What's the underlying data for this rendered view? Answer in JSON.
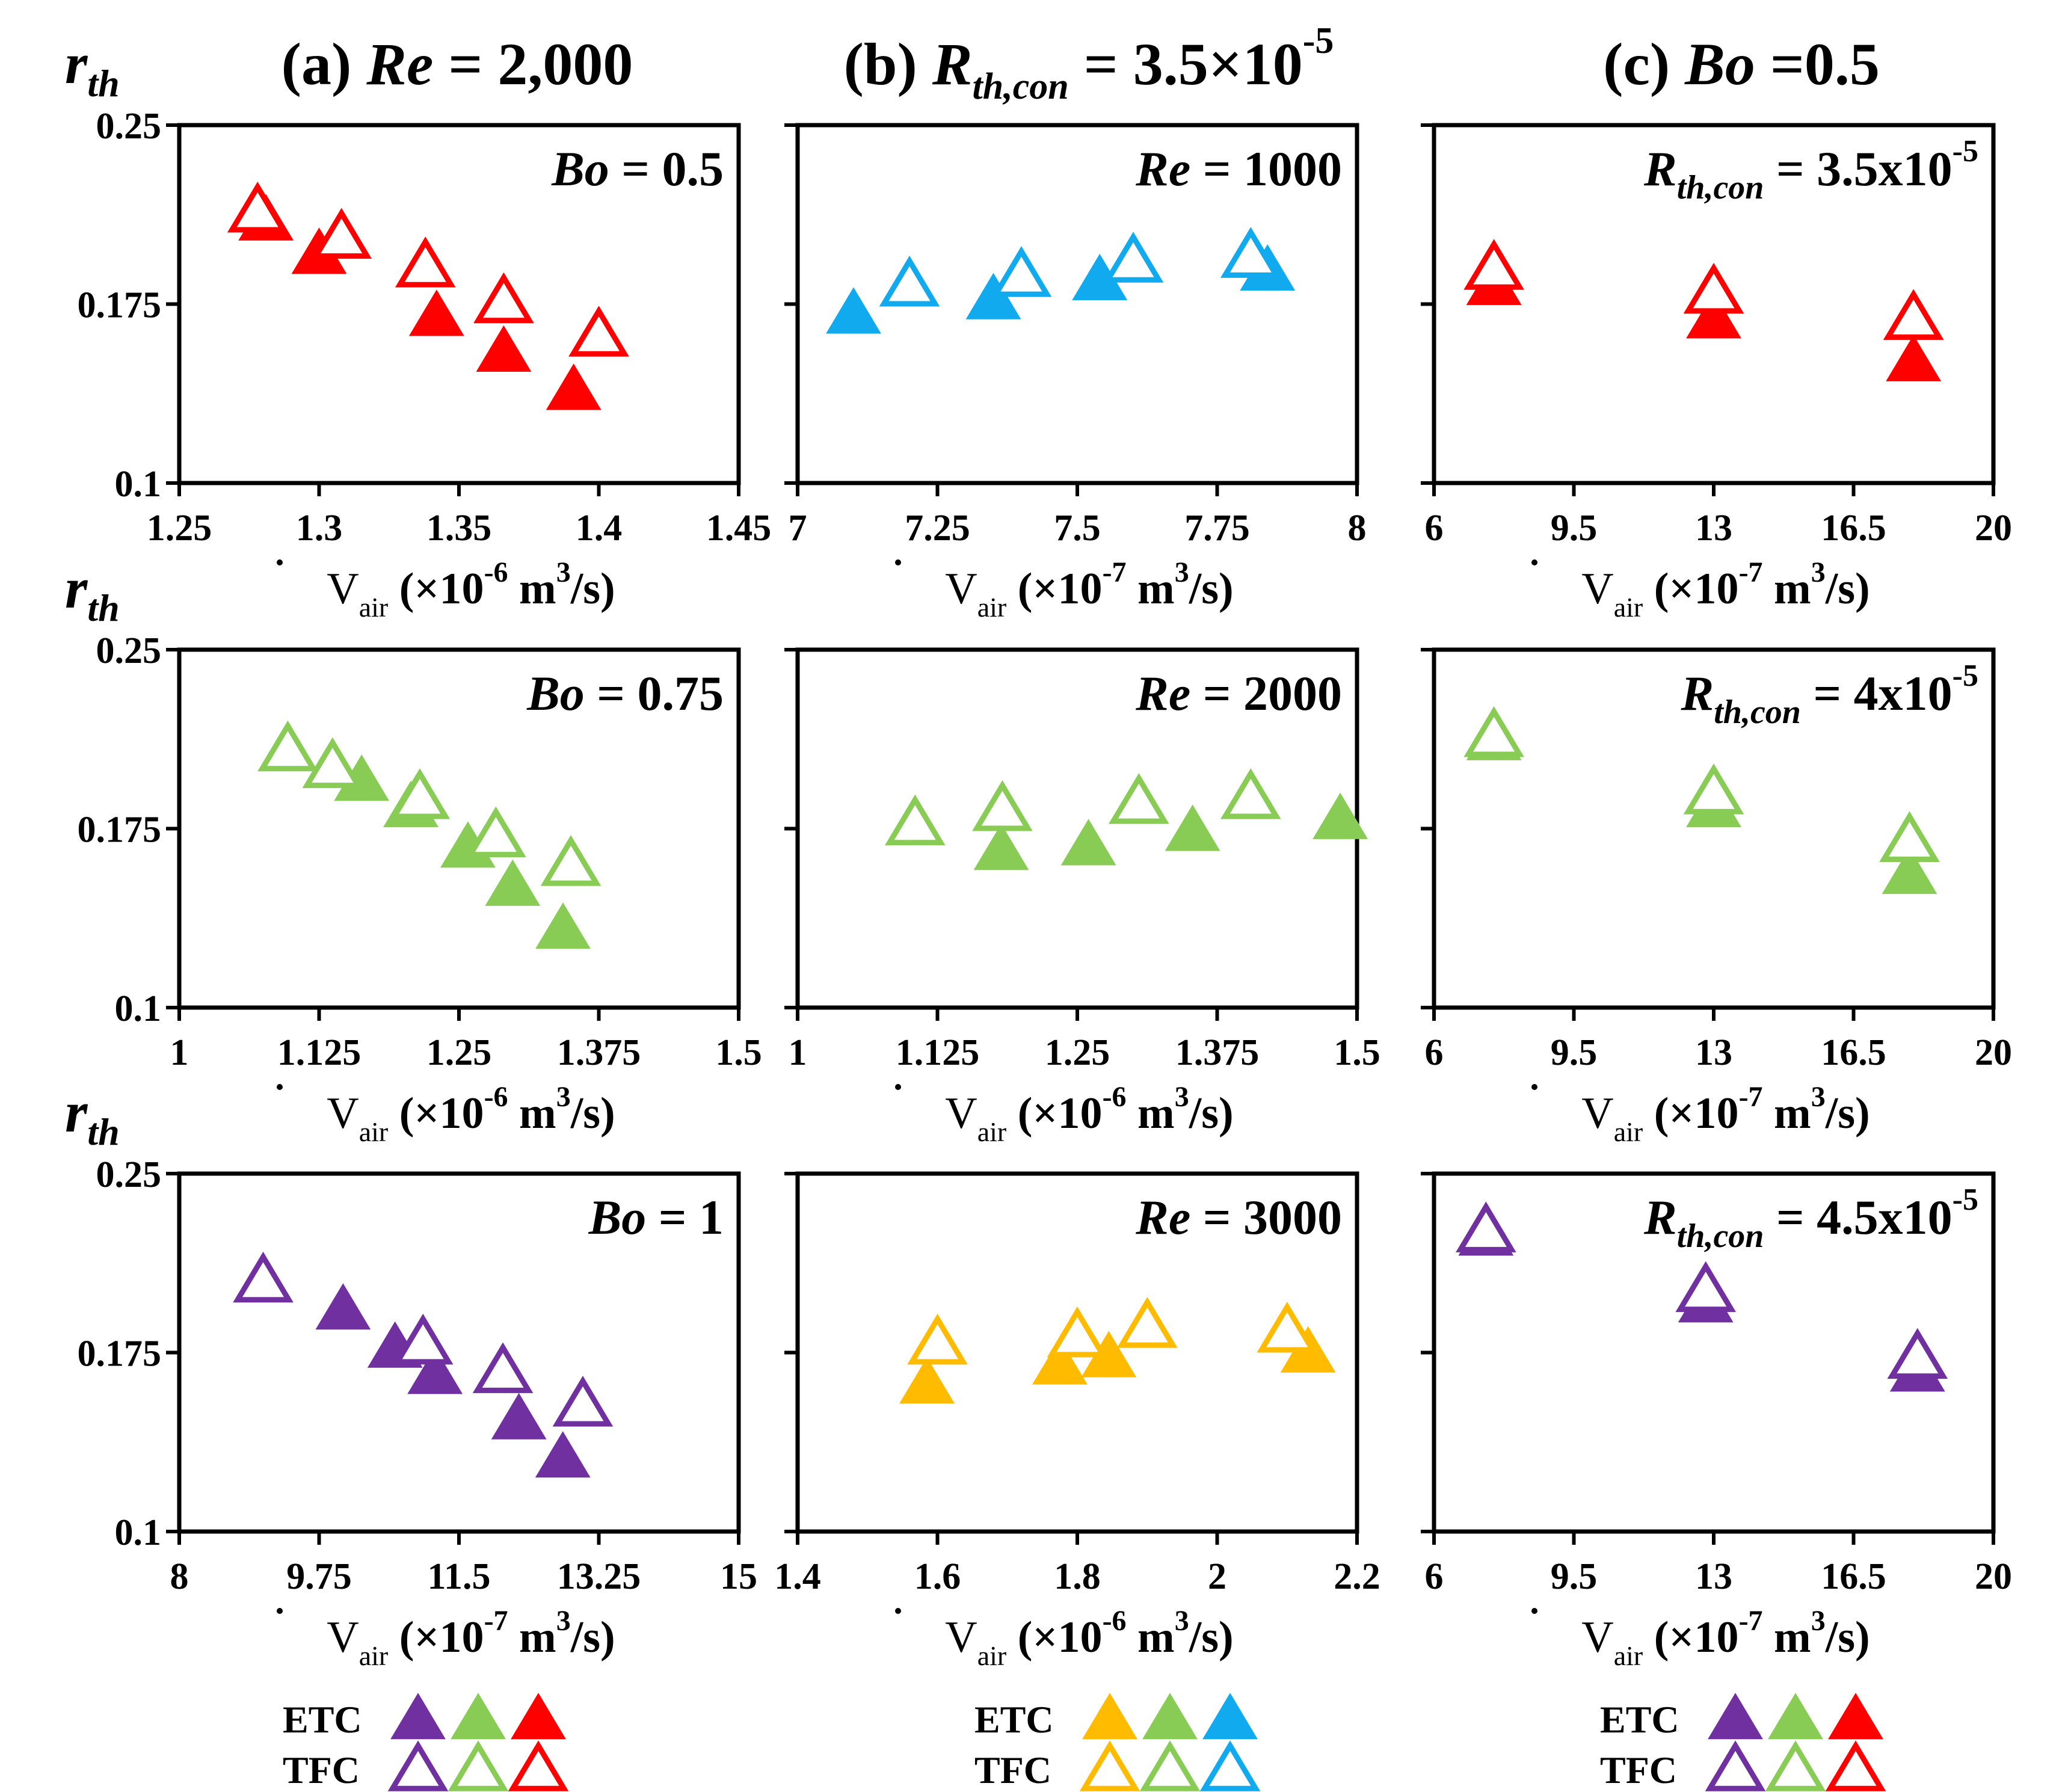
{
  "colors": {
    "red": "#ff0000",
    "green": "#88cc55",
    "blue": "#11aaee",
    "purple": "#7030a0",
    "yellow": "#ffbb00"
  },
  "column_titles": [
    {
      "prefix": "(a) ",
      "math": "Re",
      "sub": "",
      "rest": " = 2,000",
      "sup": ""
    },
    {
      "prefix": "(b) ",
      "math": "R",
      "sub": "th,con",
      "rest": " = 3.5×10",
      "sup": "-5"
    },
    {
      "prefix": "(c) ",
      "math": "Bo",
      "sub": "",
      "rest": " =0.5",
      "sup": ""
    }
  ],
  "ylabel": {
    "main": "r",
    "sub": "th"
  },
  "legends": [
    {
      "etc": "ETC",
      "tfc": "TFC",
      "colors": [
        "purple",
        "green",
        "red"
      ]
    },
    {
      "etc": "ETC",
      "tfc": "TFC",
      "colors": [
        "yellow",
        "green",
        "blue"
      ]
    },
    {
      "etc": "ETC",
      "tfc": "TFC",
      "colors": [
        "purple",
        "green",
        "red"
      ]
    }
  ],
  "chart_data": [
    {
      "type": "scatter",
      "row": 0,
      "col": 0,
      "color": "red",
      "annotation": {
        "math": "Bo",
        "sub": "",
        "rest": " = 0.5",
        "sup": ""
      },
      "ylabel": "r_th",
      "xlabel": {
        "v": "V",
        "sub": "air",
        "pre": " (×10",
        "exp": "-6",
        "post": " m",
        "exp2": "3",
        "tail": "/s)"
      },
      "xlim": [
        1.25,
        1.45
      ],
      "xticks": [
        "1.25",
        "1.3",
        "1.35",
        "1.4",
        "1.45"
      ],
      "ylim": [
        0.1,
        0.25
      ],
      "yticks": [
        "0.1",
        "0.175",
        "0.25"
      ],
      "series": [
        {
          "name": "ETC",
          "filled": true,
          "x": [
            1.281,
            1.3,
            1.342,
            1.366,
            1.391
          ],
          "y": [
            0.21,
            0.196,
            0.17,
            0.155,
            0.139
          ]
        },
        {
          "name": "TFC",
          "filled": false,
          "x": [
            1.278,
            1.308,
            1.338,
            1.366,
            1.4
          ],
          "y": [
            0.214,
            0.203,
            0.191,
            0.176,
            0.162
          ]
        }
      ]
    },
    {
      "type": "scatter",
      "row": 0,
      "col": 1,
      "color": "blue",
      "annotation": {
        "math": "Re",
        "sub": "",
        "rest": " = 1000",
        "sup": ""
      },
      "xlabel": {
        "v": "V",
        "sub": "air",
        "pre": " (×10",
        "exp": "-7",
        "post": " m",
        "exp2": "3",
        "tail": "/s)"
      },
      "xlim": [
        7,
        8
      ],
      "xticks": [
        "7",
        "7.25",
        "7.5",
        "7.75",
        "8"
      ],
      "ylim": [
        0.1,
        0.25
      ],
      "yticks": [
        "",
        "",
        ""
      ],
      "series": [
        {
          "name": "ETC",
          "filled": true,
          "x": [
            7.1,
            7.35,
            7.54,
            7.84
          ],
          "y": [
            0.171,
            0.177,
            0.185,
            0.189
          ]
        },
        {
          "name": "TFC",
          "filled": false,
          "x": [
            7.2,
            7.4,
            7.6,
            7.81
          ],
          "y": [
            0.183,
            0.187,
            0.193,
            0.195
          ]
        }
      ]
    },
    {
      "type": "scatter",
      "row": 0,
      "col": 2,
      "color": "red",
      "annotation": {
        "math": "R",
        "sub": "th,con",
        "rest": " = 3.5x10",
        "sup": "-5"
      },
      "xlabel": {
        "v": "V",
        "sub": "air",
        "pre": " (×10",
        "exp": "-7",
        "post": " m",
        "exp2": "3",
        "tail": "/s)"
      },
      "xlim": [
        6,
        20
      ],
      "xticks": [
        "6",
        "9.5",
        "13",
        "16.5",
        "20"
      ],
      "ylim": [
        0.1,
        0.25
      ],
      "yticks": [
        "",
        "",
        ""
      ],
      "series": [
        {
          "name": "ETC",
          "filled": true,
          "x": [
            7.5,
            13.0,
            18.0
          ],
          "y": [
            0.183,
            0.169,
            0.151
          ]
        },
        {
          "name": "TFC",
          "filled": false,
          "x": [
            7.5,
            13.0,
            18.0
          ],
          "y": [
            0.19,
            0.18,
            0.169
          ]
        }
      ]
    },
    {
      "type": "scatter",
      "row": 1,
      "col": 0,
      "color": "green",
      "annotation": {
        "math": "Bo",
        "sub": "",
        "rest": " = 0.75",
        "sup": ""
      },
      "ylabel": "r_th",
      "xlabel": {
        "v": "V",
        "sub": "air",
        "pre": " (×10",
        "exp": "-6",
        "post": " m",
        "exp2": "3",
        "tail": "/s)"
      },
      "xlim": [
        1,
        1.5
      ],
      "xticks": [
        "1",
        "1.125",
        "1.25",
        "1.375",
        "1.5"
      ],
      "ylim": [
        0.1,
        0.25
      ],
      "yticks": [
        "0.1",
        "0.175",
        "0.25"
      ],
      "series": [
        {
          "name": "ETC",
          "filled": true,
          "x": [
            1.163,
            1.207,
            1.258,
            1.298,
            1.343
          ],
          "y": [
            0.195,
            0.184,
            0.167,
            0.151,
            0.133
          ]
        },
        {
          "name": "TFC",
          "filled": false,
          "x": [
            1.097,
            1.137,
            1.215,
            1.283,
            1.35
          ],
          "y": [
            0.208,
            0.201,
            0.188,
            0.172,
            0.16
          ]
        }
      ]
    },
    {
      "type": "scatter",
      "row": 1,
      "col": 1,
      "color": "green",
      "annotation": {
        "math": "Re",
        "sub": "",
        "rest": " = 2000",
        "sup": ""
      },
      "xlabel": {
        "v": "V",
        "sub": "air",
        "pre": " (×10",
        "exp": "-6",
        "post": " m",
        "exp2": "3",
        "tail": "/s)"
      },
      "xlim": [
        1,
        1.5
      ],
      "xticks": [
        "1",
        "1.125",
        "1.25",
        "1.375",
        "1.5"
      ],
      "ylim": [
        0.1,
        0.25
      ],
      "yticks": [
        "",
        "",
        ""
      ],
      "series": [
        {
          "name": "ETC",
          "filled": true,
          "x": [
            1.182,
            1.26,
            1.353,
            1.485
          ],
          "y": [
            0.166,
            0.168,
            0.174,
            0.179
          ]
        },
        {
          "name": "TFC",
          "filled": false,
          "x": [
            1.105,
            1.183,
            1.305,
            1.405
          ],
          "y": [
            0.177,
            0.183,
            0.186,
            0.188
          ]
        }
      ]
    },
    {
      "type": "scatter",
      "row": 1,
      "col": 2,
      "color": "green",
      "annotation": {
        "math": "R",
        "sub": "th,con",
        "rest": " = 4x10",
        "sup": "-5"
      },
      "xlabel": {
        "v": "V",
        "sub": "air",
        "pre": " (×10",
        "exp": "-7",
        "post": " m",
        "exp2": "3",
        "tail": "/s)"
      },
      "xlim": [
        6,
        20
      ],
      "xticks": [
        "6",
        "9.5",
        "13",
        "16.5",
        "20"
      ],
      "ylim": [
        0.1,
        0.25
      ],
      "yticks": [
        "",
        "",
        ""
      ],
      "series": [
        {
          "name": "ETC",
          "filled": true,
          "x": [
            7.5,
            13.0,
            17.9
          ],
          "y": [
            0.212,
            0.184,
            0.156
          ]
        },
        {
          "name": "TFC",
          "filled": false,
          "x": [
            7.5,
            13.0,
            17.9
          ],
          "y": [
            0.214,
            0.19,
            0.17
          ]
        }
      ]
    },
    {
      "type": "scatter",
      "row": 2,
      "col": 0,
      "color": "purple",
      "annotation": {
        "math": "Bo",
        "sub": "",
        "rest": " = 1",
        "sup": ""
      },
      "ylabel": "r_th",
      "xlabel": {
        "v": "V",
        "sub": "air",
        "pre": " (×10",
        "exp": "-7",
        "post": " m",
        "exp2": "3",
        "tail": "/s)"
      },
      "xlim": [
        8,
        15
      ],
      "xticks": [
        "8",
        "9.75",
        "11.5",
        "13.25",
        "15"
      ],
      "ylim": [
        0.1,
        0.25
      ],
      "yticks": [
        "0.1",
        "0.175",
        "0.25"
      ],
      "series": [
        {
          "name": "ETC",
          "filled": true,
          "x": [
            10.05,
            10.7,
            11.2,
            12.25,
            12.8
          ],
          "y": [
            0.193,
            0.177,
            0.166,
            0.147,
            0.131
          ]
        },
        {
          "name": "TFC",
          "filled": false,
          "x": [
            9.05,
            11.05,
            12.05,
            13.05
          ],
          "y": [
            0.205,
            0.179,
            0.167,
            0.153
          ]
        }
      ]
    },
    {
      "type": "scatter",
      "row": 2,
      "col": 1,
      "color": "yellow",
      "annotation": {
        "math": "Re",
        "sub": "",
        "rest": " = 3000",
        "sup": ""
      },
      "xlabel": {
        "v": "V",
        "sub": "air",
        "pre": " (×10",
        "exp": "-6",
        "post": " m",
        "exp2": "3",
        "tail": "/s)"
      },
      "xlim": [
        1.4,
        2.2
      ],
      "xticks": [
        "1.4",
        "1.6",
        "1.8",
        "2",
        "2.2"
      ],
      "ylim": [
        0.1,
        0.25
      ],
      "yticks": [
        "",
        "",
        ""
      ],
      "series": [
        {
          "name": "ETC",
          "filled": true,
          "x": [
            1.585,
            1.775,
            1.845,
            2.13
          ],
          "y": [
            0.162,
            0.17,
            0.173,
            0.175
          ]
        },
        {
          "name": "TFC",
          "filled": false,
          "x": [
            1.6,
            1.8,
            1.9,
            2.1
          ],
          "y": [
            0.179,
            0.182,
            0.186,
            0.184
          ]
        }
      ]
    },
    {
      "type": "scatter",
      "row": 2,
      "col": 2,
      "color": "purple",
      "annotation": {
        "math": "R",
        "sub": "th,con",
        "rest": " = 4.5x10",
        "sup": "-5"
      },
      "xlabel": {
        "v": "V",
        "sub": "air",
        "pre": " (×10",
        "exp": "-7",
        "post": " m",
        "exp2": "3",
        "tail": "/s)"
      },
      "xlim": [
        6,
        20
      ],
      "xticks": [
        "6",
        "9.5",
        "13",
        "16.5",
        "20"
      ],
      "ylim": [
        0.1,
        0.25
      ],
      "yticks": [
        "",
        "",
        ""
      ],
      "series": [
        {
          "name": "ETC",
          "filled": true,
          "x": [
            7.3,
            12.8,
            18.1
          ],
          "y": [
            0.224,
            0.196,
            0.167
          ]
        },
        {
          "name": "TFC",
          "filled": false,
          "x": [
            7.3,
            12.8,
            18.1
          ],
          "y": [
            0.226,
            0.201,
            0.173
          ]
        }
      ]
    }
  ]
}
